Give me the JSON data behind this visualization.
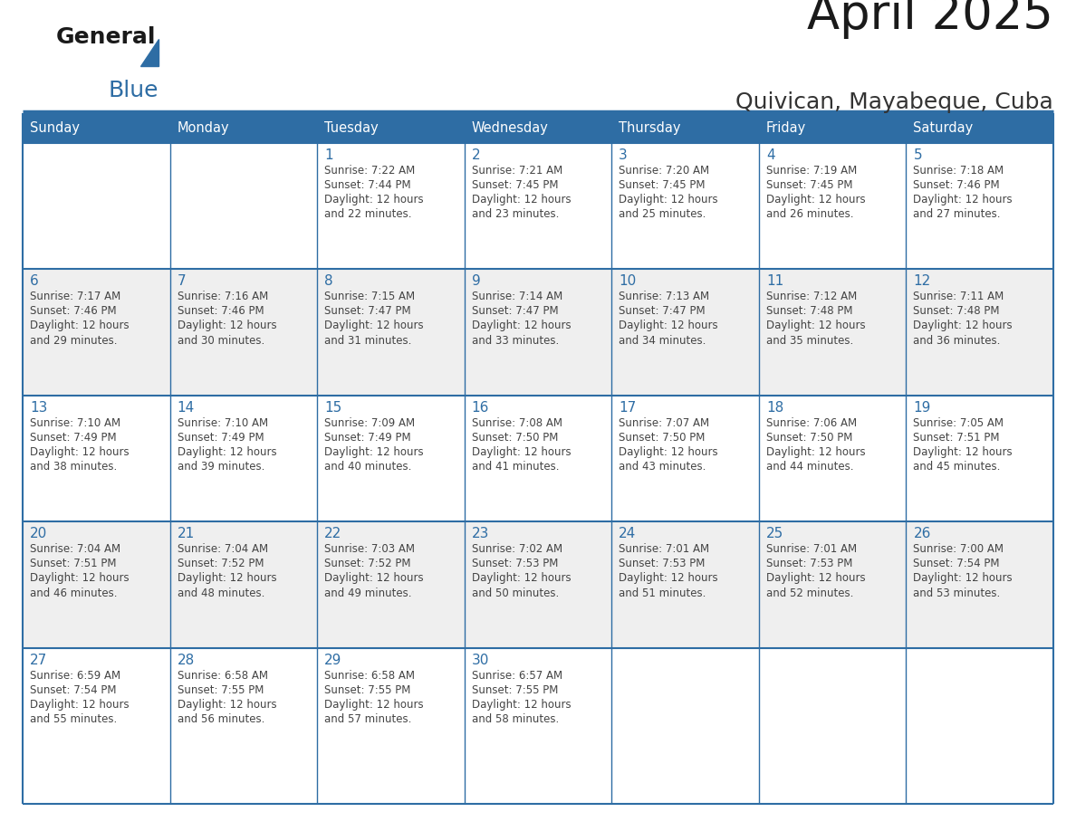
{
  "title": "April 2025",
  "subtitle": "Quivican, Mayabeque, Cuba",
  "header_bg": "#2E6DA4",
  "header_text_color": "#FFFFFF",
  "cell_bg_odd": "#FFFFFF",
  "cell_bg_even": "#EFEFEF",
  "text_color": "#444444",
  "day_number_color": "#2E6DA4",
  "border_color": "#2E6DA4",
  "separator_color": "#2E6DA4",
  "days_of_week": [
    "Sunday",
    "Monday",
    "Tuesday",
    "Wednesday",
    "Thursday",
    "Friday",
    "Saturday"
  ],
  "weeks": [
    [
      {
        "day": "",
        "sunrise": "",
        "sunset": "",
        "daylight": ""
      },
      {
        "day": "",
        "sunrise": "",
        "sunset": "",
        "daylight": ""
      },
      {
        "day": "1",
        "sunrise": "Sunrise: 7:22 AM",
        "sunset": "Sunset: 7:44 PM",
        "daylight": "Daylight: 12 hours\nand 22 minutes."
      },
      {
        "day": "2",
        "sunrise": "Sunrise: 7:21 AM",
        "sunset": "Sunset: 7:45 PM",
        "daylight": "Daylight: 12 hours\nand 23 minutes."
      },
      {
        "day": "3",
        "sunrise": "Sunrise: 7:20 AM",
        "sunset": "Sunset: 7:45 PM",
        "daylight": "Daylight: 12 hours\nand 25 minutes."
      },
      {
        "day": "4",
        "sunrise": "Sunrise: 7:19 AM",
        "sunset": "Sunset: 7:45 PM",
        "daylight": "Daylight: 12 hours\nand 26 minutes."
      },
      {
        "day": "5",
        "sunrise": "Sunrise: 7:18 AM",
        "sunset": "Sunset: 7:46 PM",
        "daylight": "Daylight: 12 hours\nand 27 minutes."
      }
    ],
    [
      {
        "day": "6",
        "sunrise": "Sunrise: 7:17 AM",
        "sunset": "Sunset: 7:46 PM",
        "daylight": "Daylight: 12 hours\nand 29 minutes."
      },
      {
        "day": "7",
        "sunrise": "Sunrise: 7:16 AM",
        "sunset": "Sunset: 7:46 PM",
        "daylight": "Daylight: 12 hours\nand 30 minutes."
      },
      {
        "day": "8",
        "sunrise": "Sunrise: 7:15 AM",
        "sunset": "Sunset: 7:47 PM",
        "daylight": "Daylight: 12 hours\nand 31 minutes."
      },
      {
        "day": "9",
        "sunrise": "Sunrise: 7:14 AM",
        "sunset": "Sunset: 7:47 PM",
        "daylight": "Daylight: 12 hours\nand 33 minutes."
      },
      {
        "day": "10",
        "sunrise": "Sunrise: 7:13 AM",
        "sunset": "Sunset: 7:47 PM",
        "daylight": "Daylight: 12 hours\nand 34 minutes."
      },
      {
        "day": "11",
        "sunrise": "Sunrise: 7:12 AM",
        "sunset": "Sunset: 7:48 PM",
        "daylight": "Daylight: 12 hours\nand 35 minutes."
      },
      {
        "day": "12",
        "sunrise": "Sunrise: 7:11 AM",
        "sunset": "Sunset: 7:48 PM",
        "daylight": "Daylight: 12 hours\nand 36 minutes."
      }
    ],
    [
      {
        "day": "13",
        "sunrise": "Sunrise: 7:10 AM",
        "sunset": "Sunset: 7:49 PM",
        "daylight": "Daylight: 12 hours\nand 38 minutes."
      },
      {
        "day": "14",
        "sunrise": "Sunrise: 7:10 AM",
        "sunset": "Sunset: 7:49 PM",
        "daylight": "Daylight: 12 hours\nand 39 minutes."
      },
      {
        "day": "15",
        "sunrise": "Sunrise: 7:09 AM",
        "sunset": "Sunset: 7:49 PM",
        "daylight": "Daylight: 12 hours\nand 40 minutes."
      },
      {
        "day": "16",
        "sunrise": "Sunrise: 7:08 AM",
        "sunset": "Sunset: 7:50 PM",
        "daylight": "Daylight: 12 hours\nand 41 minutes."
      },
      {
        "day": "17",
        "sunrise": "Sunrise: 7:07 AM",
        "sunset": "Sunset: 7:50 PM",
        "daylight": "Daylight: 12 hours\nand 43 minutes."
      },
      {
        "day": "18",
        "sunrise": "Sunrise: 7:06 AM",
        "sunset": "Sunset: 7:50 PM",
        "daylight": "Daylight: 12 hours\nand 44 minutes."
      },
      {
        "day": "19",
        "sunrise": "Sunrise: 7:05 AM",
        "sunset": "Sunset: 7:51 PM",
        "daylight": "Daylight: 12 hours\nand 45 minutes."
      }
    ],
    [
      {
        "day": "20",
        "sunrise": "Sunrise: 7:04 AM",
        "sunset": "Sunset: 7:51 PM",
        "daylight": "Daylight: 12 hours\nand 46 minutes."
      },
      {
        "day": "21",
        "sunrise": "Sunrise: 7:04 AM",
        "sunset": "Sunset: 7:52 PM",
        "daylight": "Daylight: 12 hours\nand 48 minutes."
      },
      {
        "day": "22",
        "sunrise": "Sunrise: 7:03 AM",
        "sunset": "Sunset: 7:52 PM",
        "daylight": "Daylight: 12 hours\nand 49 minutes."
      },
      {
        "day": "23",
        "sunrise": "Sunrise: 7:02 AM",
        "sunset": "Sunset: 7:53 PM",
        "daylight": "Daylight: 12 hours\nand 50 minutes."
      },
      {
        "day": "24",
        "sunrise": "Sunrise: 7:01 AM",
        "sunset": "Sunset: 7:53 PM",
        "daylight": "Daylight: 12 hours\nand 51 minutes."
      },
      {
        "day": "25",
        "sunrise": "Sunrise: 7:01 AM",
        "sunset": "Sunset: 7:53 PM",
        "daylight": "Daylight: 12 hours\nand 52 minutes."
      },
      {
        "day": "26",
        "sunrise": "Sunrise: 7:00 AM",
        "sunset": "Sunset: 7:54 PM",
        "daylight": "Daylight: 12 hours\nand 53 minutes."
      }
    ],
    [
      {
        "day": "27",
        "sunrise": "Sunrise: 6:59 AM",
        "sunset": "Sunset: 7:54 PM",
        "daylight": "Daylight: 12 hours\nand 55 minutes."
      },
      {
        "day": "28",
        "sunrise": "Sunrise: 6:58 AM",
        "sunset": "Sunset: 7:55 PM",
        "daylight": "Daylight: 12 hours\nand 56 minutes."
      },
      {
        "day": "29",
        "sunrise": "Sunrise: 6:58 AM",
        "sunset": "Sunset: 7:55 PM",
        "daylight": "Daylight: 12 hours\nand 57 minutes."
      },
      {
        "day": "30",
        "sunrise": "Sunrise: 6:57 AM",
        "sunset": "Sunset: 7:55 PM",
        "daylight": "Daylight: 12 hours\nand 58 minutes."
      },
      {
        "day": "",
        "sunrise": "",
        "sunset": "",
        "daylight": ""
      },
      {
        "day": "",
        "sunrise": "",
        "sunset": "",
        "daylight": ""
      },
      {
        "day": "",
        "sunrise": "",
        "sunset": "",
        "daylight": ""
      }
    ]
  ],
  "logo_general_color": "#1a1a1a",
  "logo_blue_color": "#2E6DA4",
  "title_color": "#1a1a1a",
  "subtitle_color": "#333333"
}
